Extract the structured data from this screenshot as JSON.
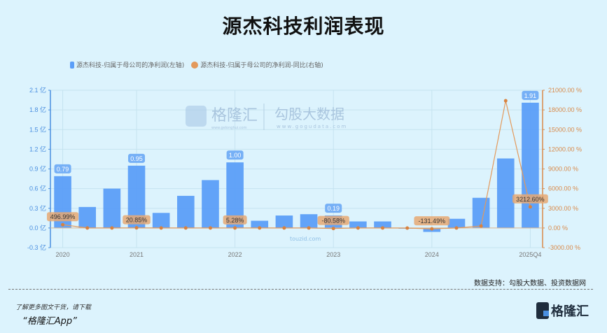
{
  "title": "源杰科技利润表现",
  "legend": {
    "bar_label": "源杰科技-归属于母公司的净利润(左轴)",
    "line_label": "源杰科技-归属于母公司的净利润-同比(右轴)"
  },
  "watermarks": {
    "brand1": "格隆汇",
    "brand1_url": "www.gelonghui.com",
    "brand2": "勾股大数据",
    "brand2_url": "www.gogudata.com",
    "brand3_url": "touzid.com"
  },
  "footer": {
    "source": "数据支持：勾股大数据、投资数据网",
    "promo_line1": "了解更多图文干货，请下载",
    "promo_line2": "“格隆汇App”",
    "brand_name": "格隆汇"
  },
  "colors": {
    "bar": "#5b9ef8",
    "line": "#e3995b",
    "left_axis": "#4a8fe0",
    "right_axis": "#d98a4a"
  },
  "chart_data": {
    "type": "bar",
    "title": "源杰科技利润表现",
    "categories": [
      "2020",
      "",
      "",
      "2021",
      "",
      "",
      "",
      "2022",
      "",
      "",
      "",
      "2023",
      "",
      "",
      "",
      "2024",
      "",
      "",
      "",
      "2025Q4"
    ],
    "x_tick_labels": [
      "2020",
      "2021",
      "2022",
      "2023",
      "2024",
      "2025Q4"
    ],
    "series": [
      {
        "name": "源杰科技-归属于母公司的净利润(左轴)",
        "type": "bar",
        "axis": "left",
        "unit": "亿",
        "values": [
          0.79,
          0.32,
          0.6,
          0.95,
          0.23,
          0.49,
          0.73,
          1.0,
          0.11,
          0.19,
          0.21,
          0.19,
          0.1,
          0.1,
          -0.01,
          -0.06,
          0.14,
          0.46,
          1.06,
          1.91
        ]
      },
      {
        "name": "源杰科技-归属于母公司的净利润-同比(右轴)",
        "type": "line",
        "axis": "right",
        "unit": "%",
        "values": [
          496.99,
          null,
          null,
          20.85,
          null,
          0,
          0,
          5.28,
          0,
          0,
          0,
          -80.58,
          0,
          0,
          -10,
          -131.49,
          0,
          300,
          19400,
          3212.6
        ]
      }
    ],
    "data_labels": {
      "bar": {
        "0": "0.79",
        "3": "0.95",
        "7": "1.00",
        "11": "0.19",
        "19": "1.91"
      },
      "line": {
        "0": "496.99%",
        "3": "20.85%",
        "7": "5.28%",
        "11": "-80.58%",
        "15": "-131.49%",
        "19": "3212.60%"
      }
    },
    "ylabel_left_ticks": [
      "2.1 亿",
      "1.8 亿",
      "1.5 亿",
      "1.2 亿",
      "0.9 亿",
      "0.6 亿",
      "0.3 亿",
      "0.0 亿",
      "-0.3 亿"
    ],
    "ylabel_right_ticks": [
      "21000.00 %",
      "18000.00 %",
      "15000.00 %",
      "12000.00 %",
      "9000.00 %",
      "6000.00 %",
      "3000.00 %",
      "0.00 %",
      "-3000.00 %"
    ],
    "ylim_left": [
      -0.3,
      2.1
    ],
    "ylim_right": [
      -3000,
      21000
    ],
    "grid": true,
    "legend_position": "top"
  }
}
